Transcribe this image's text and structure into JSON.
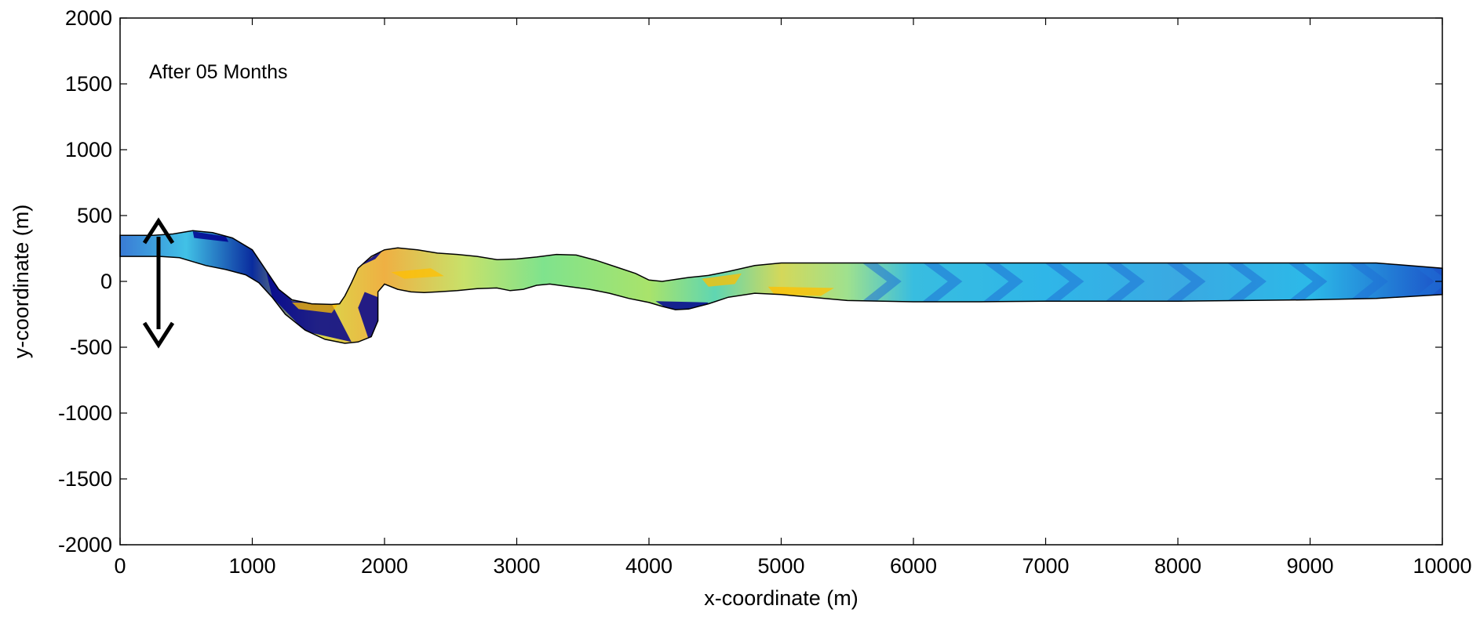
{
  "chart_data": {
    "type": "heatmap",
    "title": "",
    "annotation": "After 05 Months",
    "xlabel": "x-coordinate (m)",
    "ylabel": "y-coordinate (m)",
    "xlim": [
      0,
      10000
    ],
    "ylim": [
      -2000,
      2000
    ],
    "x_ticks": [
      0,
      1000,
      2000,
      3000,
      4000,
      5000,
      6000,
      7000,
      8000,
      9000,
      10000
    ],
    "y_ticks": [
      -2000,
      -1500,
      -1000,
      -500,
      0,
      500,
      1000,
      1500,
      2000
    ],
    "x_tick_labels": [
      "0",
      "1000",
      "2000",
      "3000",
      "4000",
      "5000",
      "6000",
      "7000",
      "8000",
      "9000",
      "10000"
    ],
    "y_tick_labels": [
      "-2000",
      "-1500",
      "-1000",
      "-500",
      "0",
      "500",
      "1000",
      "1500",
      "2000"
    ],
    "grid": false,
    "colormap": "jet",
    "channel": {
      "upper_bank": [
        [
          0,
          350
        ],
        [
          250,
          350
        ],
        [
          400,
          360
        ],
        [
          550,
          385
        ],
        [
          700,
          370
        ],
        [
          850,
          330
        ],
        [
          1000,
          240
        ],
        [
          1100,
          90
        ],
        [
          1200,
          -60
        ],
        [
          1300,
          -140
        ],
        [
          1450,
          -170
        ],
        [
          1600,
          -175
        ],
        [
          1660,
          -170
        ],
        [
          1700,
          -110
        ],
        [
          1750,
          -10
        ],
        [
          1800,
          100
        ],
        [
          1900,
          190
        ],
        [
          2000,
          240
        ],
        [
          2100,
          255
        ],
        [
          2250,
          240
        ],
        [
          2400,
          215
        ],
        [
          2550,
          205
        ],
        [
          2700,
          190
        ],
        [
          2850,
          165
        ],
        [
          3000,
          170
        ],
        [
          3150,
          185
        ],
        [
          3300,
          205
        ],
        [
          3450,
          200
        ],
        [
          3600,
          160
        ],
        [
          3750,
          110
        ],
        [
          3900,
          60
        ],
        [
          4000,
          10
        ],
        [
          4100,
          0
        ],
        [
          4200,
          15
        ],
        [
          4300,
          30
        ],
        [
          4450,
          45
        ],
        [
          4600,
          75
        ],
        [
          4800,
          120
        ],
        [
          5000,
          140
        ],
        [
          5300,
          140
        ],
        [
          5600,
          140
        ],
        [
          6000,
          140
        ],
        [
          6500,
          140
        ],
        [
          7000,
          140
        ],
        [
          7500,
          140
        ],
        [
          8000,
          140
        ],
        [
          8500,
          140
        ],
        [
          9000,
          140
        ],
        [
          9500,
          140
        ],
        [
          10000,
          100
        ]
      ],
      "lower_bank": [
        [
          10000,
          -100
        ],
        [
          9500,
          -130
        ],
        [
          9000,
          -140
        ],
        [
          8500,
          -145
        ],
        [
          8000,
          -150
        ],
        [
          7500,
          -150
        ],
        [
          7000,
          -150
        ],
        [
          6500,
          -155
        ],
        [
          6000,
          -155
        ],
        [
          5500,
          -145
        ],
        [
          5000,
          -100
        ],
        [
          4800,
          -90
        ],
        [
          4600,
          -120
        ],
        [
          4450,
          -170
        ],
        [
          4300,
          -210
        ],
        [
          4200,
          -215
        ],
        [
          4100,
          -190
        ],
        [
          4000,
          -160
        ],
        [
          3850,
          -130
        ],
        [
          3700,
          -90
        ],
        [
          3550,
          -60
        ],
        [
          3400,
          -40
        ],
        [
          3250,
          -20
        ],
        [
          3150,
          -30
        ],
        [
          3050,
          -60
        ],
        [
          2950,
          -70
        ],
        [
          2850,
          -50
        ],
        [
          2700,
          -55
        ],
        [
          2550,
          -70
        ],
        [
          2400,
          -80
        ],
        [
          2300,
          -85
        ],
        [
          2200,
          -80
        ],
        [
          2100,
          -60
        ],
        [
          2000,
          -20
        ],
        [
          1950,
          -80
        ],
        [
          1950,
          -300
        ],
        [
          1900,
          -420
        ],
        [
          1800,
          -460
        ],
        [
          1700,
          -470
        ],
        [
          1550,
          -440
        ],
        [
          1400,
          -370
        ],
        [
          1250,
          -250
        ],
        [
          1150,
          -120
        ],
        [
          1050,
          -10
        ],
        [
          950,
          50
        ],
        [
          800,
          90
        ],
        [
          650,
          120
        ],
        [
          550,
          150
        ],
        [
          450,
          180
        ],
        [
          300,
          190
        ],
        [
          0,
          190
        ]
      ]
    }
  },
  "page": {
    "arrow_icon": "double-headed-vertical-arrow",
    "colors": {
      "axis": "#000000",
      "channel_outline": "#000000",
      "arrow": "#000000",
      "jet_low": "#00008f",
      "jet_mid_blue": "#00bfff",
      "jet_mid": "#7fff7f",
      "jet_high": "#ffbf00"
    }
  }
}
